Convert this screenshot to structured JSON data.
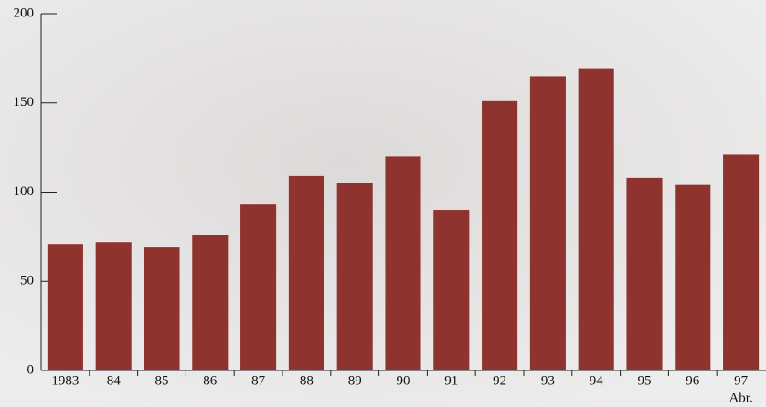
{
  "chart_data": {
    "type": "bar",
    "categories": [
      "1983",
      "84",
      "85",
      "86",
      "87",
      "88",
      "89",
      "90",
      "91",
      "92",
      "93",
      "94",
      "95",
      "96",
      "97"
    ],
    "values": [
      71,
      72,
      69,
      76,
      93,
      109,
      105,
      120,
      90,
      151,
      165,
      169,
      108,
      104,
      121
    ],
    "annotation": "Abr.",
    "color": "#8e332d",
    "ylim": [
      0,
      200
    ],
    "yticks": [
      0,
      50,
      100,
      150,
      200
    ],
    "grid": false
  }
}
